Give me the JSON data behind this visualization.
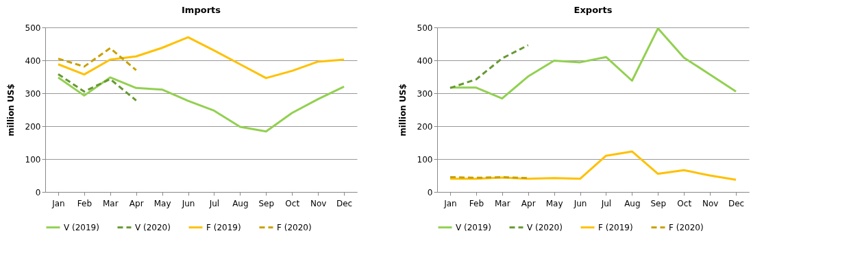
{
  "chart_data": [
    {
      "type": "line",
      "title": "Imports",
      "ylabel": "million US$",
      "categories": [
        "Jan",
        "Feb",
        "Mar",
        "Apr",
        "May",
        "Jun",
        "Jul",
        "Aug",
        "Sep",
        "Oct",
        "Nov",
        "Dec"
      ],
      "ylim": [
        0,
        500
      ],
      "yticks": [
        0,
        100,
        200,
        300,
        400,
        500
      ],
      "grid": "y",
      "legend": "bottom",
      "series": [
        {
          "name": "V (2019)",
          "color": "#92d050",
          "line_style": "solid",
          "values": [
            348,
            293,
            348,
            316,
            311,
            277,
            247,
            198,
            184,
            240,
            282,
            320
          ]
        },
        {
          "name": "V (2020)",
          "color": "#669933",
          "line_style": "dashed",
          "values": [
            358,
            305,
            343,
            278,
            null,
            null,
            null,
            null,
            null,
            null,
            null,
            null
          ]
        },
        {
          "name": "F (2019)",
          "color": "#ffc000",
          "line_style": "solid",
          "values": [
            388,
            357,
            402,
            412,
            438,
            470,
            430,
            388,
            346,
            368,
            396,
            402
          ]
        },
        {
          "name": "F (2020)",
          "color": "#c9a000",
          "line_style": "dashed",
          "values": [
            405,
            381,
            437,
            370,
            null,
            null,
            null,
            null,
            null,
            null,
            null,
            null
          ]
        }
      ]
    },
    {
      "type": "line",
      "title": "Exports",
      "ylabel": "million US$",
      "categories": [
        "Jan",
        "Feb",
        "Mar",
        "Apr",
        "May",
        "Jun",
        "Jul",
        "Aug",
        "Sep",
        "Oct",
        "Nov",
        "Dec"
      ],
      "ylim": [
        0,
        500
      ],
      "yticks": [
        0,
        100,
        200,
        300,
        400,
        500
      ],
      "grid": "y",
      "legend": "bottom",
      "series": [
        {
          "name": "V (2019)",
          "color": "#92d050",
          "line_style": "solid",
          "values": [
            317,
            317,
            284,
            351,
            399,
            394,
            410,
            338,
            497,
            408,
            357,
            305
          ]
        },
        {
          "name": "V (2020)",
          "color": "#669933",
          "line_style": "dashed",
          "values": [
            316,
            342,
            406,
            446,
            null,
            null,
            null,
            null,
            null,
            null,
            null,
            null
          ]
        },
        {
          "name": "F (2019)",
          "color": "#ffc000",
          "line_style": "solid",
          "values": [
            40,
            40,
            44,
            40,
            42,
            40,
            110,
            123,
            55,
            66,
            50,
            37
          ]
        },
        {
          "name": "F (2020)",
          "color": "#c9a000",
          "line_style": "dashed",
          "values": [
            45,
            43,
            45,
            42,
            null,
            null,
            null,
            null,
            null,
            null,
            null,
            null
          ]
        }
      ]
    }
  ]
}
